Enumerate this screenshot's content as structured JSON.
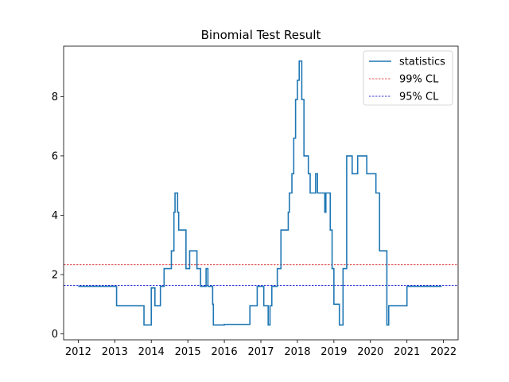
{
  "chart_data": {
    "type": "line",
    "title": "Binomial Test Result",
    "xlabel": "",
    "ylabel": "",
    "xlim": [
      2011.6,
      2022.4
    ],
    "ylim": [
      -0.2,
      9.7
    ],
    "x_ticks": [
      {
        "value": 2012,
        "label": "2012"
      },
      {
        "value": 2013,
        "label": "2013"
      },
      {
        "value": 2014,
        "label": "2014"
      },
      {
        "value": 2015,
        "label": "2015"
      },
      {
        "value": 2016,
        "label": "2016"
      },
      {
        "value": 2017,
        "label": "2017"
      },
      {
        "value": 2018,
        "label": "2018"
      },
      {
        "value": 2019,
        "label": "2019"
      },
      {
        "value": 2020,
        "label": "2020"
      },
      {
        "value": 2021,
        "label": "2021"
      },
      {
        "value": 2022,
        "label": "2022"
      }
    ],
    "y_ticks": [
      {
        "value": 0,
        "label": "0"
      },
      {
        "value": 2,
        "label": "2"
      },
      {
        "value": 4,
        "label": "4"
      },
      {
        "value": 6,
        "label": "6"
      },
      {
        "value": 8,
        "label": "8"
      }
    ],
    "legend": {
      "position": "top-right",
      "entries": [
        {
          "label": "statistics",
          "style": "solid",
          "color": "#1f77b4"
        },
        {
          "label": "99% CL",
          "style": "dashed",
          "color": "#d62728"
        },
        {
          "label": "95% CL",
          "style": "dashed",
          "color": "#0000cc"
        }
      ]
    },
    "series": [
      {
        "name": "statistics",
        "color": "#1f77b4",
        "step": true,
        "x": [
          2012.0,
          2013.05,
          2013.8,
          2013.95,
          2014.0,
          2014.1,
          2014.25,
          2014.35,
          2014.55,
          2014.62,
          2014.65,
          2014.72,
          2014.75,
          2014.9,
          2014.95,
          2015.05,
          2015.25,
          2015.35,
          2015.5,
          2015.55,
          2015.6,
          2015.68,
          2015.7,
          2016.0,
          2016.45,
          2016.7,
          2016.9,
          2017.05,
          2017.08,
          2017.12,
          2017.2,
          2017.25,
          2017.3,
          2017.45,
          2017.55,
          2017.75,
          2017.78,
          2017.85,
          2017.9,
          2017.95,
          2018.0,
          2018.05,
          2018.1,
          2018.12,
          2018.18,
          2018.3,
          2018.35,
          2018.5,
          2018.55,
          2018.6,
          2018.75,
          2018.78,
          2018.85,
          2018.9,
          2018.95,
          2019.0,
          2019.15,
          2019.2,
          2019.25,
          2019.35,
          2019.5,
          2019.65,
          2019.9,
          2020.15,
          2020.2,
          2020.25,
          2020.45,
          2020.5,
          2021.0,
          2021.95
        ],
        "y": [
          1.6,
          0.95,
          0.3,
          0.3,
          1.55,
          0.95,
          1.6,
          2.2,
          2.8,
          4.1,
          4.75,
          4.1,
          3.5,
          3.5,
          2.2,
          2.8,
          2.2,
          1.6,
          2.2,
          1.6,
          1.6,
          1.0,
          0.3,
          0.32,
          0.32,
          0.95,
          1.6,
          1.6,
          0.95,
          0.95,
          0.3,
          0.95,
          1.6,
          2.2,
          3.5,
          4.1,
          4.75,
          5.4,
          6.6,
          7.9,
          8.55,
          9.2,
          9.2,
          7.9,
          6.0,
          5.4,
          4.75,
          5.4,
          4.75,
          4.75,
          4.1,
          4.75,
          4.75,
          3.5,
          2.2,
          1.0,
          0.3,
          0.3,
          2.2,
          6.0,
          5.4,
          6.0,
          5.4,
          4.75,
          4.75,
          2.8,
          0.3,
          0.95,
          1.6,
          1.6
        ]
      }
    ],
    "hlines": [
      {
        "name": "99% CL",
        "value": 2.33,
        "color": "#d62728",
        "style": "dashed"
      },
      {
        "name": "95% CL",
        "value": 1.64,
        "color": "#0000cc",
        "style": "dashed"
      }
    ]
  }
}
